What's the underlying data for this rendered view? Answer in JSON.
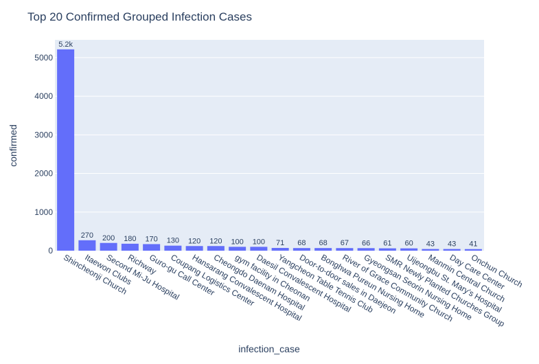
{
  "chart_data": {
    "type": "bar",
    "title": "Top 20 Confirmed Grouped Infection Cases",
    "xlabel": "infection_case",
    "ylabel": "confirmed",
    "ylim": [
      0,
      5460
    ],
    "yticks": [
      0,
      1000,
      2000,
      3000,
      4000,
      5000
    ],
    "grid": true,
    "bar_color": "#636efa",
    "plot_bg": "#e5ecf6",
    "categories": [
      "Shincheonji Church",
      "Itaewon Clubs",
      "Second Mi-Ju Hospital",
      "Richway",
      "Guro-gu Call Center",
      "Coupang Logistics Center",
      "Hansarang Convalescent Hospital",
      "Cheongdo Daenam Hospital",
      "gym facility in Cheonan",
      "Daesil Convalescent Hospital",
      "Yangcheon Table Tennis Club",
      "Door-to-door sales in Daejeon",
      "Bonghwa Pureun Nursing Home",
      "River of Grace Community Church",
      "Gyeongsan Seorin Nursing Home",
      "SMR Newly Planted Churches Group",
      "Uijeongbu St. Mary's Hospital",
      "Manmin Central Church",
      "Day Care Center",
      "Onchun Church"
    ],
    "values": [
      5213,
      270,
      200,
      180,
      170,
      130,
      120,
      120,
      100,
      100,
      71,
      68,
      68,
      67,
      66,
      61,
      60,
      43,
      43,
      41
    ],
    "value_labels": [
      "5.2k",
      "270",
      "200",
      "180",
      "170",
      "130",
      "120",
      "120",
      "100",
      "100",
      "71",
      "68",
      "68",
      "67",
      "66",
      "61",
      "60",
      "43",
      "43",
      "41"
    ]
  }
}
